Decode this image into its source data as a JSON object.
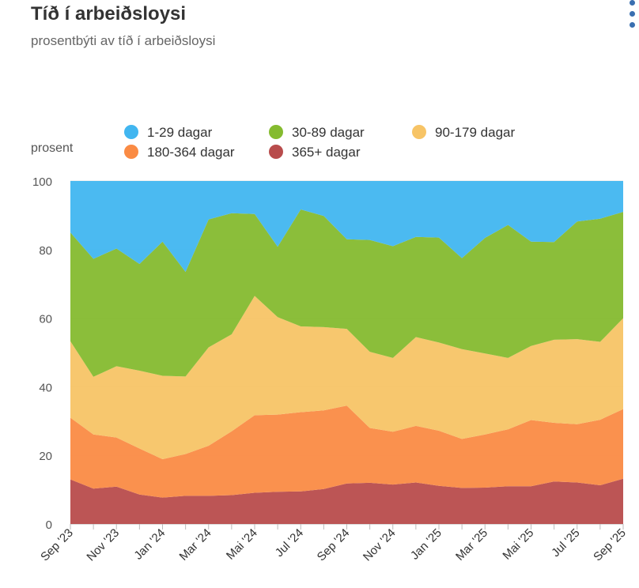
{
  "title": "Tíð í arbeiðsloysi",
  "subtitle": "prosentbýti av tíð í arbeiðsloysi",
  "menu_icon": "more-vertical-icon",
  "chart_data": {
    "type": "area",
    "stacked": true,
    "ylabel": "prosent",
    "ylim": [
      0,
      100
    ],
    "yticks": [
      0,
      20,
      40,
      60,
      80,
      100
    ],
    "x": [
      "Sep '23",
      "Okt '23",
      "Nov '23",
      "Des '23",
      "Jan '24",
      "Feb '24",
      "Mar '24",
      "Apr '24",
      "Mai '24",
      "Jun '24",
      "Jul '24",
      "Aug '24",
      "Sep '24",
      "Okt '24",
      "Nov '24",
      "Des '24",
      "Jan '25",
      "Feb '25",
      "Mar '25",
      "Apr '25",
      "Mai '25",
      "Jun '25",
      "Jul '25",
      "Aug '25",
      "Sep '25"
    ],
    "xtick_labels": [
      "Sep '23",
      "Nov '23",
      "Jan '24",
      "Mar '24",
      "Mai '24",
      "Jul '24",
      "Sep '24",
      "Nov '24",
      "Jan '25",
      "Mar '25",
      "Mai '25",
      "Jul '25",
      "Sep '25"
    ],
    "legend_position": "top",
    "series": [
      {
        "name": "365+ dagar",
        "color": "#b84c4c",
        "values": [
          13,
          10.3,
          10.9,
          8.6,
          7.7,
          8.2,
          8.2,
          8.4,
          9.1,
          9.4,
          9.5,
          10.2,
          11.8,
          12.0,
          11.5,
          12.1,
          11.1,
          10.5,
          10.6,
          11.0,
          11.0,
          12.4,
          12.1,
          11.3,
          13.2
        ]
      },
      {
        "name": "180-364 dagar",
        "color": "#fa8b44",
        "values": [
          18,
          15.8,
          14.3,
          13.4,
          11.2,
          12.2,
          14.6,
          18.6,
          22.6,
          22.5,
          23.1,
          22.9,
          22.7,
          16.0,
          15.4,
          16.5,
          16.1,
          14.3,
          15.5,
          16.6,
          19.3,
          17.1,
          17.0,
          19.1,
          20.3
        ]
      },
      {
        "name": "90-179 dagar",
        "color": "#f7c466",
        "values": [
          22.3,
          16.8,
          20.8,
          22.7,
          24.3,
          22.6,
          28.7,
          28.3,
          34.8,
          28.4,
          25.0,
          24.3,
          22.4,
          22.2,
          21.5,
          25.9,
          25.7,
          26.2,
          23.6,
          20.8,
          21.6,
          24.2,
          24.8,
          22.7,
          26.5
        ]
      },
      {
        "name": "30-89 dagar",
        "color": "#85bb2f",
        "values": [
          31.7,
          34.4,
          34.3,
          31.1,
          39.1,
          30.5,
          37.3,
          35.3,
          23.9,
          20.5,
          34.1,
          32.4,
          26.1,
          32.6,
          32.6,
          29.2,
          30.6,
          26.5,
          33.7,
          38.8,
          30.4,
          28.5,
          34.3,
          35.9,
          31.0
        ]
      },
      {
        "name": "1-29 dagar",
        "color": "#41b6f0",
        "values": [
          15,
          22.7,
          19.7,
          24.2,
          17.7,
          26.5,
          11.2,
          9.4,
          9.6,
          19.2,
          8.3,
          10.2,
          17.0,
          17.2,
          19.0,
          16.3,
          16.5,
          22.5,
          16.6,
          12.8,
          17.7,
          17.8,
          11.8,
          11.0,
          9.0
        ]
      }
    ],
    "legend": [
      "1-29 dagar",
      "30-89 dagar",
      "90-179 dagar",
      "180-364 dagar",
      "365+ dagar"
    ]
  }
}
